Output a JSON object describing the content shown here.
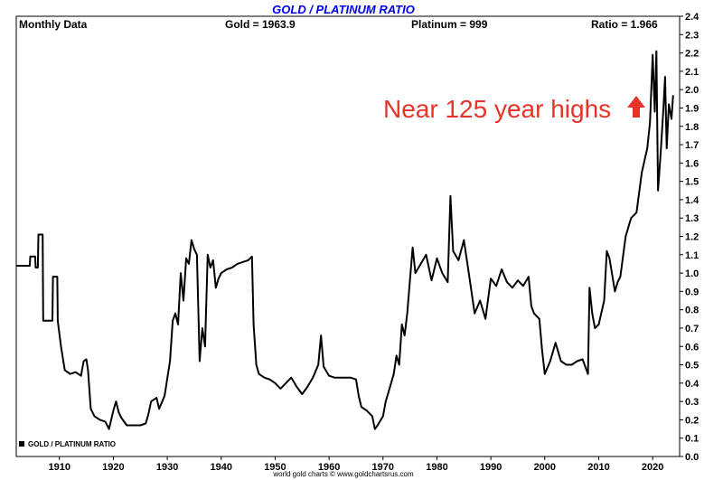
{
  "chart_data": {
    "type": "line",
    "title": "GOLD / PLATINUM RATIO",
    "header": {
      "left": "Monthly Data",
      "gold": "Gold = 1963.9",
      "platinum": "Platinum = 999",
      "ratio": "Ratio = 1.966"
    },
    "annotation": "Near 125 year highs",
    "legend": "GOLD / PLATINUM RATIO",
    "credit": "world gold charts © www.goldchartsrus.com",
    "xlim": [
      1902,
      2025
    ],
    "ylim": [
      0.0,
      2.4
    ],
    "x_ticks": [
      1910,
      1920,
      1930,
      1940,
      1950,
      1960,
      1970,
      1980,
      1990,
      2000,
      2010,
      2020
    ],
    "y_ticks": [
      "0.0",
      "0.1",
      "0.2",
      "0.3",
      "0.4",
      "0.5",
      "0.6",
      "0.7",
      "0.8",
      "0.9",
      "1.0",
      "1.1",
      "1.2",
      "1.3",
      "1.4",
      "1.5",
      "1.6",
      "1.7",
      "1.8",
      "1.9",
      "2.0",
      "2.1",
      "2.2",
      "2.3",
      "2.4"
    ],
    "series": [
      {
        "name": "GOLD / PLATINUM RATIO",
        "color": "#000000",
        "points": [
          [
            1902.0,
            1.04
          ],
          [
            1904.5,
            1.04
          ],
          [
            1904.6,
            1.09
          ],
          [
            1905.5,
            1.09
          ],
          [
            1905.6,
            1.03
          ],
          [
            1906.0,
            1.03
          ],
          [
            1906.1,
            1.21
          ],
          [
            1906.9,
            1.21
          ],
          [
            1907.0,
            0.74
          ],
          [
            1908.7,
            0.74
          ],
          [
            1908.8,
            0.98
          ],
          [
            1909.6,
            0.98
          ],
          [
            1909.7,
            0.74
          ],
          [
            1910.3,
            0.6
          ],
          [
            1911.0,
            0.47
          ],
          [
            1912.0,
            0.45
          ],
          [
            1913.0,
            0.46
          ],
          [
            1914.0,
            0.44
          ],
          [
            1914.5,
            0.52
          ],
          [
            1915.0,
            0.53
          ],
          [
            1915.3,
            0.47
          ],
          [
            1915.8,
            0.26
          ],
          [
            1916.5,
            0.22
          ],
          [
            1917.5,
            0.2
          ],
          [
            1918.5,
            0.19
          ],
          [
            1919.2,
            0.15
          ],
          [
            1920.0,
            0.25
          ],
          [
            1920.5,
            0.3
          ],
          [
            1921.0,
            0.24
          ],
          [
            1921.5,
            0.21
          ],
          [
            1922.5,
            0.17
          ],
          [
            1923.5,
            0.17
          ],
          [
            1925.0,
            0.17
          ],
          [
            1926.0,
            0.18
          ],
          [
            1926.5,
            0.23
          ],
          [
            1927.0,
            0.3
          ],
          [
            1928.0,
            0.32
          ],
          [
            1928.5,
            0.26
          ],
          [
            1929.5,
            0.33
          ],
          [
            1930.5,
            0.52
          ],
          [
            1931.0,
            0.74
          ],
          [
            1931.5,
            0.78
          ],
          [
            1932.0,
            0.72
          ],
          [
            1932.5,
            1.0
          ],
          [
            1933.0,
            0.85
          ],
          [
            1933.5,
            1.08
          ],
          [
            1934.0,
            1.05
          ],
          [
            1934.5,
            1.18
          ],
          [
            1935.0,
            1.13
          ],
          [
            1935.5,
            1.1
          ],
          [
            1936.0,
            0.52
          ],
          [
            1936.5,
            0.7
          ],
          [
            1937.0,
            0.6
          ],
          [
            1937.5,
            1.1
          ],
          [
            1938.0,
            1.03
          ],
          [
            1938.5,
            1.07
          ],
          [
            1939.0,
            0.92
          ],
          [
            1939.5,
            0.97
          ],
          [
            1940.0,
            1.0
          ],
          [
            1941.0,
            1.02
          ],
          [
            1942.0,
            1.03
          ],
          [
            1943.0,
            1.05
          ],
          [
            1944.0,
            1.06
          ],
          [
            1945.0,
            1.07
          ],
          [
            1945.7,
            1.09
          ],
          [
            1946.0,
            0.72
          ],
          [
            1946.5,
            0.5
          ],
          [
            1947.0,
            0.45
          ],
          [
            1948.0,
            0.43
          ],
          [
            1949.0,
            0.42
          ],
          [
            1950.0,
            0.4
          ],
          [
            1951.0,
            0.37
          ],
          [
            1952.0,
            0.4
          ],
          [
            1953.0,
            0.43
          ],
          [
            1954.0,
            0.38
          ],
          [
            1955.0,
            0.34
          ],
          [
            1956.0,
            0.38
          ],
          [
            1957.0,
            0.43
          ],
          [
            1958.0,
            0.5
          ],
          [
            1958.5,
            0.66
          ],
          [
            1959.0,
            0.49
          ],
          [
            1960.0,
            0.44
          ],
          [
            1961.0,
            0.43
          ],
          [
            1962.0,
            0.43
          ],
          [
            1963.0,
            0.43
          ],
          [
            1964.0,
            0.43
          ],
          [
            1965.0,
            0.42
          ],
          [
            1965.5,
            0.33
          ],
          [
            1966.0,
            0.27
          ],
          [
            1967.0,
            0.25
          ],
          [
            1968.0,
            0.22
          ],
          [
            1968.5,
            0.15
          ],
          [
            1969.0,
            0.17
          ],
          [
            1970.0,
            0.22
          ],
          [
            1970.5,
            0.3
          ],
          [
            1971.0,
            0.35
          ],
          [
            1972.0,
            0.45
          ],
          [
            1972.5,
            0.55
          ],
          [
            1973.0,
            0.5
          ],
          [
            1973.5,
            0.72
          ],
          [
            1974.0,
            0.66
          ],
          [
            1974.5,
            0.78
          ],
          [
            1975.0,
            0.96
          ],
          [
            1975.5,
            1.14
          ],
          [
            1976.0,
            1.0
          ],
          [
            1977.0,
            1.05
          ],
          [
            1978.0,
            1.1
          ],
          [
            1978.5,
            1.03
          ],
          [
            1979.0,
            0.96
          ],
          [
            1980.0,
            1.08
          ],
          [
            1981.0,
            1.0
          ],
          [
            1982.0,
            0.95
          ],
          [
            1982.5,
            1.42
          ],
          [
            1983.0,
            1.12
          ],
          [
            1984.0,
            1.07
          ],
          [
            1985.0,
            1.18
          ],
          [
            1986.0,
            0.98
          ],
          [
            1987.0,
            0.78
          ],
          [
            1988.0,
            0.85
          ],
          [
            1989.0,
            0.75
          ],
          [
            1990.0,
            0.97
          ],
          [
            1991.0,
            0.93
          ],
          [
            1992.0,
            1.02
          ],
          [
            1993.0,
            0.95
          ],
          [
            1994.0,
            0.92
          ],
          [
            1995.0,
            0.96
          ],
          [
            1996.0,
            0.93
          ],
          [
            1997.0,
            0.98
          ],
          [
            1997.5,
            0.82
          ],
          [
            1998.0,
            0.78
          ],
          [
            1999.0,
            0.75
          ],
          [
            1999.5,
            0.58
          ],
          [
            2000.0,
            0.45
          ],
          [
            2001.0,
            0.52
          ],
          [
            2002.0,
            0.62
          ],
          [
            2003.0,
            0.52
          ],
          [
            2004.0,
            0.5
          ],
          [
            2005.0,
            0.5
          ],
          [
            2006.0,
            0.52
          ],
          [
            2007.0,
            0.53
          ],
          [
            2008.0,
            0.45
          ],
          [
            2008.3,
            0.92
          ],
          [
            2008.8,
            0.78
          ],
          [
            2009.3,
            0.7
          ],
          [
            2010.0,
            0.72
          ],
          [
            2011.0,
            0.85
          ],
          [
            2011.5,
            1.12
          ],
          [
            2012.0,
            1.08
          ],
          [
            2013.0,
            0.9
          ],
          [
            2013.5,
            0.95
          ],
          [
            2014.0,
            0.98
          ],
          [
            2015.0,
            1.2
          ],
          [
            2016.0,
            1.3
          ],
          [
            2017.0,
            1.33
          ],
          [
            2018.0,
            1.55
          ],
          [
            2019.0,
            1.68
          ],
          [
            2019.5,
            1.82
          ],
          [
            2020.0,
            2.19
          ],
          [
            2020.4,
            1.88
          ],
          [
            2020.7,
            2.21
          ],
          [
            2021.0,
            1.45
          ],
          [
            2021.5,
            1.66
          ],
          [
            2022.0,
            1.9
          ],
          [
            2022.3,
            2.07
          ],
          [
            2022.6,
            1.68
          ],
          [
            2023.0,
            1.92
          ],
          [
            2023.5,
            1.84
          ],
          [
            2023.8,
            1.97
          ]
        ]
      }
    ]
  }
}
